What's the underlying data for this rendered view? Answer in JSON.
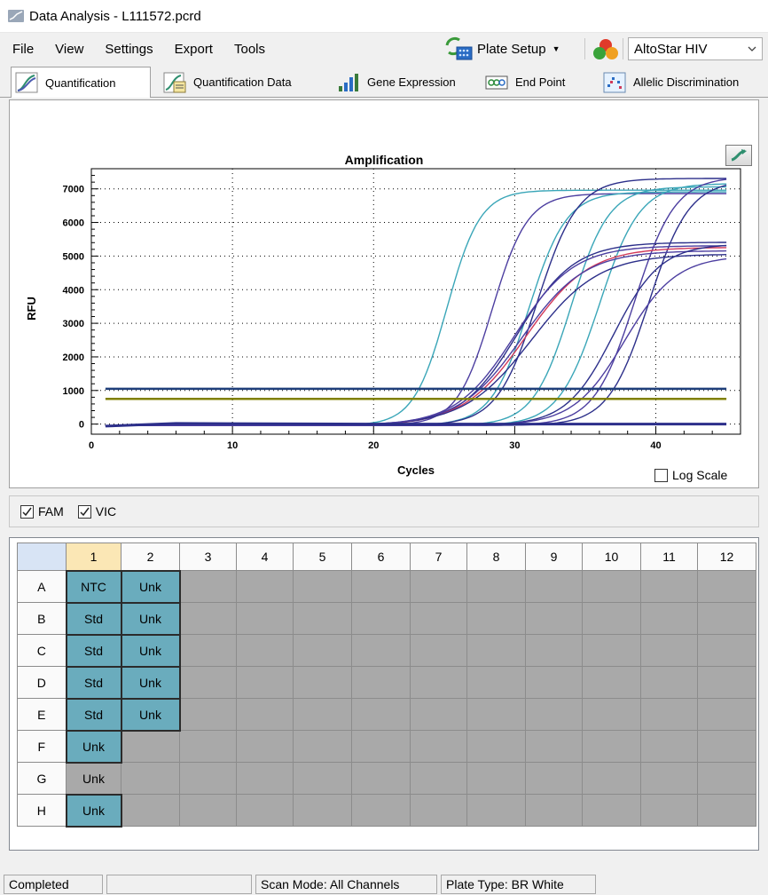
{
  "window": {
    "title": "Data Analysis - L111572.pcrd"
  },
  "menu": [
    "File",
    "View",
    "Settings",
    "Export",
    "Tools"
  ],
  "toolbar": {
    "plate_setup_label": "Plate Setup",
    "assay_value": "AltoStar HIV"
  },
  "tabs": [
    "Quantification",
    "Quantification Data",
    "Gene Expression",
    "End Point",
    "Allelic Discrimination"
  ],
  "chart_options": {
    "log_scale_label": "Log Scale",
    "log_scale_checked": false
  },
  "channels": [
    {
      "label": "FAM",
      "checked": true
    },
    {
      "label": "VIC",
      "checked": true
    }
  ],
  "plate": {
    "columns": [
      "1",
      "2",
      "3",
      "4",
      "5",
      "6",
      "7",
      "8",
      "9",
      "10",
      "11",
      "12"
    ],
    "rows": [
      {
        "row": "A",
        "wells": [
          "NTC",
          "Unk"
        ]
      },
      {
        "row": "B",
        "wells": [
          "Std",
          "Unk"
        ]
      },
      {
        "row": "C",
        "wells": [
          "Std",
          "Unk"
        ]
      },
      {
        "row": "D",
        "wells": [
          "Std",
          "Unk"
        ]
      },
      {
        "row": "E",
        "wells": [
          "Std",
          "Unk"
        ]
      },
      {
        "row": "F",
        "wells": [
          "Unk"
        ]
      },
      {
        "row": "G",
        "wells": [
          "Unk"
        ]
      },
      {
        "row": "H",
        "wells": [
          "Unk"
        ]
      }
    ],
    "unselected_wells": [
      "G1"
    ]
  },
  "status": {
    "state": "Completed",
    "progress": "",
    "scan_mode": "Scan Mode: All Channels",
    "plate_type": "Plate Type: BR White"
  },
  "colors": {
    "well_fill": "#6aacbd",
    "empty_well": "#a9a9a9",
    "threshold_fam": "#1f3f7a",
    "threshold_vic": "#808000"
  },
  "chart_data": {
    "type": "line",
    "title": "Amplification",
    "xlabel": "Cycles",
    "ylabel": "RFU",
    "xlim": [
      0,
      46
    ],
    "ylim": [
      -300,
      7600
    ],
    "xticks": [
      0,
      10,
      20,
      30,
      40
    ],
    "yticks": [
      0,
      1000,
      2000,
      3000,
      4000,
      5000,
      6000,
      7000
    ],
    "grid": true,
    "thresholds": [
      {
        "channel": "FAM",
        "value": 1050
      },
      {
        "channel": "VIC",
        "value": 750
      }
    ],
    "series": [
      {
        "color": "#3aa6b8",
        "max": 7000,
        "mid": 25.2,
        "slope": 0.85
      },
      {
        "color": "#4c3ea0",
        "max": 6900,
        "mid": 28.4,
        "slope": 0.8
      },
      {
        "color": "#3aa6b8",
        "max": 6950,
        "mid": 31.0,
        "slope": 0.75
      },
      {
        "color": "#2c2f8a",
        "max": 7350,
        "mid": 31.6,
        "slope": 0.7
      },
      {
        "color": "#3aa6b8",
        "max": 7100,
        "mid": 34.0,
        "slope": 0.75
      },
      {
        "color": "#3aa6b8",
        "max": 7200,
        "mid": 36.0,
        "slope": 0.7
      },
      {
        "color": "#4c3ea0",
        "max": 7400,
        "mid": 38.5,
        "slope": 0.7
      },
      {
        "color": "#2c2f8a",
        "max": 7300,
        "mid": 39.5,
        "slope": 0.7
      },
      {
        "color": "#2c2f8a",
        "max": 5450,
        "mid": 30.2,
        "slope": 0.5
      },
      {
        "color": "#d23a5a",
        "max": 5300,
        "mid": 30.8,
        "slope": 0.45
      },
      {
        "color": "#4c3ea0",
        "max": 5200,
        "mid": 30.5,
        "slope": 0.45
      },
      {
        "color": "#2c2f8a",
        "max": 5100,
        "mid": 31.2,
        "slope": 0.42
      },
      {
        "color": "#4c3ea0",
        "max": 5350,
        "mid": 30.0,
        "slope": 0.48
      },
      {
        "color": "#2c2f8a",
        "max": 5400,
        "mid": 37.0,
        "slope": 0.6
      },
      {
        "color": "#4c3ea0",
        "max": 5050,
        "mid": 37.8,
        "slope": 0.55
      }
    ]
  }
}
